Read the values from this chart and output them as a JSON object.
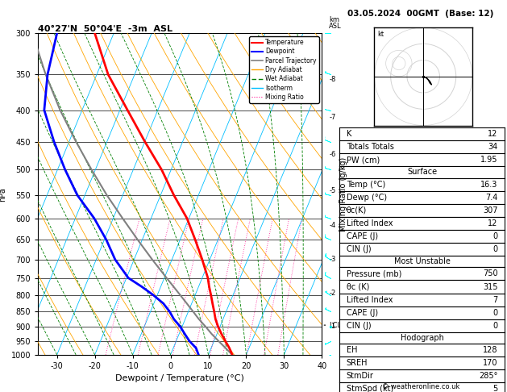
{
  "title_left": "40°27'N  50°04'E  -3m  ASL",
  "title_right": "03.05.2024  00GMT  (Base: 12)",
  "xlabel": "Dewpoint / Temperature (°C)",
  "ylabel_left": "hPa",
  "background": "#ffffff",
  "isotherm_color": "#00bfff",
  "dry_adiabat_color": "#ffa500",
  "wet_adiabat_color": "#008000",
  "mixing_ratio_color": "#ff1493",
  "temp_color": "#ff0000",
  "dewpoint_color": "#0000ff",
  "parcel_color": "#808080",
  "P_min": 300,
  "P_max": 1000,
  "T_min": -35,
  "T_max": 40,
  "skew_factor": 35,
  "pressure_levels": [
    300,
    350,
    400,
    450,
    500,
    550,
    600,
    650,
    700,
    750,
    800,
    850,
    900,
    950,
    1000
  ],
  "lcl_pressure": 895,
  "km_ticks": {
    "900": 1,
    "795": 2,
    "700": 3,
    "616": 4,
    "541": 5,
    "472": 6,
    "411": 7,
    "357": 8
  },
  "temperature_data": {
    "pressure": [
      1000,
      975,
      950,
      925,
      900,
      875,
      850,
      825,
      800,
      775,
      750,
      700,
      650,
      600,
      550,
      500,
      450,
      400,
      350,
      300
    ],
    "temp": [
      16.3,
      14.8,
      13.0,
      11.2,
      9.5,
      8.0,
      6.8,
      5.5,
      4.2,
      2.8,
      1.5,
      -2.0,
      -6.0,
      -10.5,
      -16.5,
      -22.5,
      -30.0,
      -38.0,
      -47.0,
      -55.0
    ]
  },
  "dewpoint_data": {
    "pressure": [
      1000,
      975,
      950,
      925,
      900,
      875,
      850,
      825,
      800,
      775,
      750,
      700,
      650,
      600,
      550,
      500,
      450,
      400,
      350,
      300
    ],
    "dewpoint": [
      7.4,
      6.0,
      3.5,
      1.5,
      -0.5,
      -3.0,
      -5.0,
      -7.5,
      -11.0,
      -15.0,
      -19.5,
      -25.0,
      -29.5,
      -35.0,
      -42.0,
      -48.0,
      -54.0,
      -60.0,
      -63.0,
      -65.0
    ]
  },
  "parcel_data": {
    "pressure": [
      1000,
      975,
      950,
      925,
      900,
      875,
      850,
      825,
      800,
      775,
      750,
      700,
      650,
      600,
      550,
      500,
      450,
      400,
      350,
      300
    ],
    "temp": [
      16.3,
      13.8,
      11.2,
      8.6,
      6.2,
      3.6,
      1.2,
      -1.3,
      -3.9,
      -6.6,
      -9.4,
      -15.2,
      -21.2,
      -27.5,
      -34.2,
      -41.0,
      -48.2,
      -55.8,
      -63.5,
      -71.5
    ]
  },
  "wind_barb_pressure": [
    1000,
    950,
    900,
    850,
    800,
    750,
    700,
    650,
    600,
    550,
    500,
    450,
    400,
    350,
    300
  ],
  "wind_barb_u": [
    3,
    2,
    1,
    2,
    3,
    5,
    6,
    7,
    8,
    8,
    7,
    5,
    4,
    3,
    2
  ],
  "wind_barb_v": [
    1,
    1,
    0,
    -1,
    -2,
    -3,
    -4,
    -3,
    -3,
    -2,
    -2,
    -2,
    -1,
    -1,
    0
  ],
  "mixing_ratios": [
    1,
    2,
    3,
    4,
    6,
    8,
    10,
    15,
    20,
    25
  ],
  "sounding_indices": {
    "K": 12,
    "Totals_Totals": 34,
    "PW_cm": 1.95,
    "Surface_Temp": 16.3,
    "Surface_Dewp": 7.4,
    "Surface_ThetaE": 307,
    "Surface_LiftedIndex": 12,
    "Surface_CAPE": 0,
    "Surface_CIN": 0,
    "MU_Pressure": 750,
    "MU_ThetaE": 315,
    "MU_LiftedIndex": 7,
    "MU_CAPE": 0,
    "MU_CIN": 0,
    "EH": 128,
    "SREH": 170,
    "StmDir": 285,
    "StmSpd": 5
  },
  "hodograph_u": [
    0,
    2,
    4,
    5,
    4,
    3,
    2
  ],
  "hodograph_v": [
    0,
    -1,
    -3,
    -5,
    -4,
    -2,
    -1
  ]
}
